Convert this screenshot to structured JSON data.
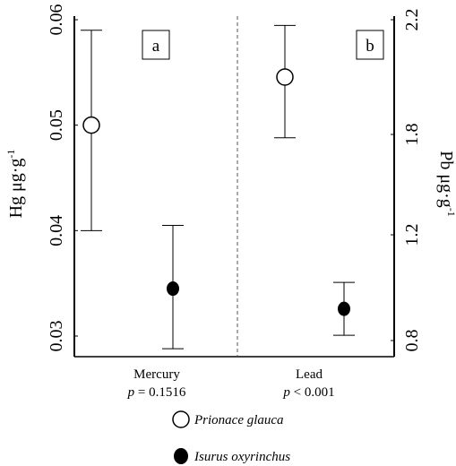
{
  "chart_data": {
    "type": "scatter",
    "panels": [
      {
        "label": "a",
        "category": "Mercury",
        "p_prefix": "p",
        "p_text": " = 0.1516",
        "axis": "left",
        "points": [
          {
            "series": "Prionace glauca",
            "y": 0.05,
            "err_low": 0.04,
            "err_high": 0.059
          },
          {
            "series": "Isurus oxyrinchus",
            "y": 0.0345,
            "err_low": 0.0288,
            "err_high": 0.0405
          }
        ]
      },
      {
        "label": "b",
        "category": "Lead",
        "p_prefix": "p",
        "p_text": " < 0.001",
        "axis": "right",
        "points": [
          {
            "series": "Prionace glauca",
            "y": 2.0,
            "err_low": 1.78,
            "err_high": 2.18
          },
          {
            "series": "Isurus oxyrinchus",
            "y": 0.92,
            "err_low": 0.82,
            "err_high": 1.02
          }
        ]
      }
    ],
    "left_axis": {
      "title_main": "Hg μg·g",
      "title_sup": "-1",
      "ylim": [
        0.0275,
        0.06
      ],
      "ticks": [
        0.03,
        0.04,
        0.05,
        0.06
      ],
      "tick_labels": [
        "0.03",
        "0.04",
        "0.05",
        "0.06"
      ]
    },
    "right_axis": {
      "title_main": "Pb μg·g",
      "title_sup": "-1",
      "ylim": [
        0.7,
        2.2
      ],
      "ticks": [
        0.8,
        1.2,
        1.8,
        2.2
      ],
      "tick_labels": [
        "0.8",
        "1.2",
        "1.8",
        "2.2"
      ]
    },
    "legend": [
      {
        "name": "Prionace glauca",
        "marker": "open-circle"
      },
      {
        "name": "Isurus oxyrinchus",
        "marker": "filled-circle"
      }
    ],
    "legend_position": "bottom",
    "grid": false,
    "divider": "dashed vertical line between panels"
  }
}
